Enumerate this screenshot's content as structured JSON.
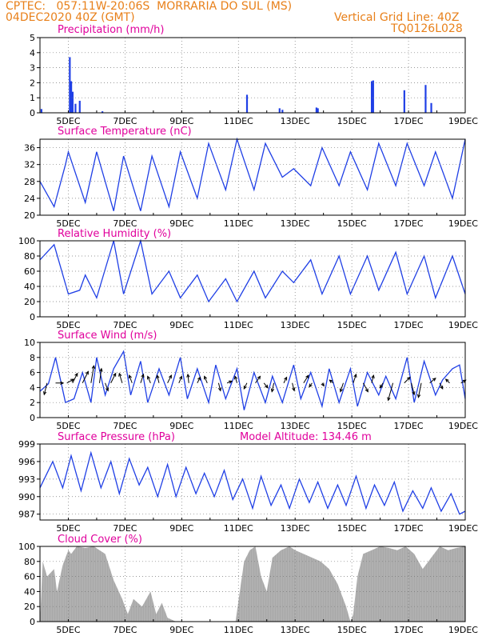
{
  "header": {
    "line1_left": "CPTEC:   057:11W-20:06S  MORRARIA DO SUL (MS)",
    "line2_left": "04DEC2020 40Z (GMT)",
    "line2_right": "Vertical Grid Line: 40Z",
    "line3_right": "TQ0126L028"
  },
  "colors": {
    "header": "#e8801a",
    "title": "#e0009c",
    "line": "#1f3fe6",
    "cloud": "#a8a8a8",
    "arrow": "#000000"
  },
  "x_axis": {
    "start_day": 4,
    "end_day": 19,
    "tick_days": [
      5,
      7,
      9,
      11,
      13,
      15,
      17,
      19
    ],
    "tick_labels": [
      "5DEC",
      "7DEC",
      "9DEC",
      "11DEC",
      "13DEC",
      "15DEC",
      "17DEC",
      "19DEC"
    ]
  },
  "chart_data": [
    {
      "id": "precip",
      "type": "bar",
      "title": "Precipitation (mm/h)",
      "ylim": [
        0,
        5
      ],
      "yticks": [
        0,
        1,
        2,
        3,
        4,
        5
      ],
      "x": [
        4.05,
        5.05,
        5.1,
        5.15,
        5.25,
        5.4,
        6.2,
        11.3,
        12.45,
        12.55,
        13.75,
        13.8,
        15.7,
        15.75,
        16.85,
        17.6,
        17.8
      ],
      "values": [
        0.25,
        3.7,
        2.1,
        1.4,
        0.6,
        0.8,
        0.1,
        1.2,
        0.3,
        0.2,
        0.35,
        0.3,
        2.1,
        2.15,
        1.5,
        1.85,
        0.65
      ]
    },
    {
      "id": "temp",
      "type": "line",
      "title": "Surface Temperature (nC)",
      "ylim": [
        20,
        38
      ],
      "yticks": [
        20,
        24,
        28,
        32,
        36
      ],
      "x": [
        4.0,
        4.5,
        4.9,
        5.0,
        5.6,
        6.0,
        6.6,
        6.95,
        7.55,
        7.95,
        8.55,
        8.95,
        9.55,
        9.95,
        10.55,
        10.95,
        11.55,
        11.95,
        12.55,
        12.95,
        13.55,
        13.95,
        14.55,
        14.95,
        15.55,
        15.95,
        16.55,
        16.95,
        17.55,
        17.95,
        18.55,
        19.0
      ],
      "values": [
        28,
        22,
        32,
        35,
        23,
        35,
        21,
        34,
        21,
        34,
        22,
        35,
        24,
        37,
        26,
        38,
        26,
        37,
        29,
        31,
        27,
        36,
        27,
        35,
        26,
        37,
        27,
        37,
        27,
        35,
        24,
        38
      ]
    },
    {
      "id": "rh",
      "type": "line",
      "title": "Relative Humidity (%)",
      "ylim": [
        0,
        100
      ],
      "yticks": [
        0,
        20,
        40,
        60,
        80,
        100
      ],
      "x": [
        4.0,
        4.5,
        5.0,
        5.4,
        5.6,
        6.0,
        6.6,
        6.95,
        7.55,
        7.95,
        8.55,
        8.95,
        9.55,
        9.95,
        10.55,
        10.95,
        11.55,
        11.95,
        12.55,
        12.95,
        13.55,
        13.95,
        14.55,
        14.95,
        15.55,
        15.95,
        16.55,
        16.95,
        17.55,
        17.95,
        18.55,
        19.0
      ],
      "values": [
        75,
        95,
        30,
        35,
        55,
        25,
        100,
        30,
        100,
        30,
        60,
        25,
        55,
        20,
        50,
        20,
        60,
        25,
        60,
        45,
        75,
        30,
        80,
        30,
        80,
        35,
        85,
        30,
        80,
        25,
        80,
        30
      ]
    },
    {
      "id": "wind",
      "type": "line",
      "title": "Surface Wind (m/s)",
      "ylim": [
        0,
        10
      ],
      "yticks": [
        0,
        2,
        4,
        6,
        8,
        10
      ],
      "x": [
        4.0,
        4.3,
        4.55,
        4.9,
        5.2,
        5.5,
        5.8,
        6.0,
        6.3,
        6.6,
        6.95,
        7.2,
        7.55,
        7.8,
        8.2,
        8.55,
        8.95,
        9.2,
        9.55,
        9.95,
        10.2,
        10.55,
        10.95,
        11.2,
        11.55,
        11.95,
        12.2,
        12.55,
        12.95,
        13.2,
        13.55,
        13.95,
        14.2,
        14.55,
        14.95,
        15.2,
        15.55,
        15.95,
        16.2,
        16.55,
        16.95,
        17.2,
        17.55,
        17.95,
        18.2,
        18.55,
        18.8,
        19.0
      ],
      "values": [
        3.5,
        4.5,
        8.0,
        2.0,
        2.5,
        6.0,
        2.0,
        8.0,
        3.0,
        6.5,
        8.8,
        3.0,
        7.5,
        2.0,
        6.5,
        3.0,
        8.0,
        2.5,
        6.5,
        2.0,
        7.0,
        2.5,
        6.5,
        1.0,
        6.0,
        2.0,
        5.5,
        2.0,
        7.0,
        2.5,
        6.0,
        1.5,
        6.5,
        2.0,
        6.5,
        1.5,
        6.0,
        3.0,
        5.5,
        2.5,
        8.0,
        2.0,
        7.5,
        3.0,
        5.0,
        6.5,
        7.0,
        2.5
      ]
    },
    {
      "id": "pres",
      "type": "line",
      "title": "Surface Pressure (hPa)",
      "subtitle": "Model Altitude: 134.46 m",
      "ylim": [
        986,
        999
      ],
      "yticks": [
        987,
        990,
        993,
        996,
        999
      ],
      "x": [
        4.0,
        4.45,
        4.8,
        5.1,
        5.45,
        5.8,
        6.15,
        6.5,
        6.8,
        7.15,
        7.5,
        7.8,
        8.15,
        8.5,
        8.8,
        9.15,
        9.5,
        9.8,
        10.15,
        10.5,
        10.8,
        11.15,
        11.5,
        11.8,
        12.15,
        12.5,
        12.8,
        13.15,
        13.5,
        13.8,
        14.15,
        14.5,
        14.8,
        15.15,
        15.5,
        15.8,
        16.15,
        16.5,
        16.8,
        17.15,
        17.5,
        17.8,
        18.15,
        18.5,
        18.8,
        19.0
      ],
      "values": [
        991.5,
        996.0,
        991.5,
        997.0,
        991.0,
        997.5,
        991.5,
        996.0,
        990.5,
        996.5,
        992.0,
        995.0,
        990.0,
        995.5,
        990.0,
        995.0,
        990.5,
        994.0,
        990.0,
        994.5,
        989.5,
        993.0,
        988.0,
        993.5,
        988.5,
        992.0,
        988.0,
        993.0,
        989.0,
        992.5,
        988.0,
        992.0,
        988.5,
        993.5,
        988.0,
        992.0,
        988.5,
        992.5,
        987.5,
        991.0,
        988.0,
        991.5,
        987.5,
        990.5,
        987.0,
        987.5
      ]
    },
    {
      "id": "cloud",
      "type": "area",
      "title": "Cloud Cover (%)",
      "ylim": [
        0,
        100
      ],
      "yticks": [
        0,
        20,
        40,
        60,
        80,
        100
      ],
      "x": [
        4.0,
        4.1,
        4.25,
        4.5,
        4.6,
        4.8,
        5.0,
        5.1,
        5.3,
        5.6,
        5.9,
        6.1,
        6.3,
        6.6,
        6.9,
        7.1,
        7.3,
        7.6,
        7.9,
        8.1,
        8.3,
        8.5,
        8.8,
        9.0,
        9.2,
        9.5,
        9.8,
        10.0,
        10.3,
        10.6,
        10.9,
        11.05,
        11.2,
        11.4,
        11.6,
        11.8,
        12.0,
        12.2,
        12.5,
        12.8,
        13.0,
        13.3,
        13.6,
        13.9,
        14.2,
        14.5,
        14.8,
        14.95,
        15.05,
        15.2,
        15.4,
        15.7,
        16.0,
        16.3,
        16.6,
        16.9,
        17.2,
        17.5,
        17.8,
        18.1,
        18.4,
        18.7,
        19.0
      ],
      "values": [
        0,
        80,
        60,
        70,
        40,
        75,
        95,
        90,
        100,
        98,
        100,
        95,
        90,
        55,
        30,
        10,
        30,
        20,
        40,
        10,
        25,
        5,
        0,
        0,
        0,
        0,
        0,
        0,
        0,
        0,
        0,
        40,
        80,
        95,
        100,
        60,
        40,
        85,
        95,
        100,
        95,
        90,
        85,
        80,
        70,
        50,
        20,
        0,
        10,
        60,
        90,
        95,
        100,
        98,
        95,
        100,
        90,
        70,
        85,
        100,
        95,
        98,
        100
      ]
    }
  ],
  "wind_vectors": {
    "days": [
      4.25,
      4.55,
      4.95,
      5.15,
      5.5,
      5.8,
      6.1,
      6.3,
      6.5,
      6.9,
      7.25,
      7.55,
      7.9,
      8.2,
      8.5,
      8.9,
      9.25,
      9.55,
      9.9,
      10.3,
      10.6,
      10.95,
      11.3,
      11.6,
      11.9,
      12.25,
      12.6,
      12.9,
      13.3,
      13.6,
      13.95,
      14.35,
      14.7,
      15.05,
      15.4,
      15.7,
      16.1,
      16.45,
      16.85,
      17.1,
      17.45,
      17.75,
      18.1,
      18.45,
      18.85
    ],
    "u": [
      -0.3,
      0.8,
      0.7,
      0.5,
      0.6,
      0.3,
      0.2,
      0.3,
      0.5,
      -0.3,
      -0.3,
      0.3,
      -0.3,
      -0.2,
      0.4,
      0.3,
      -0.1,
      0.3,
      -0.3,
      0.2,
      0.5,
      -0.2,
      -0.3,
      0.5,
      0.4,
      -0.2,
      0.3,
      0.2,
      0.5,
      -0.3,
      0.2,
      -0.4,
      -0.3,
      0.3,
      0.5,
      0.2,
      -0.3,
      -0.5,
      0.6,
      0.3,
      -0.3,
      0.6,
      0.3,
      -0.4,
      0.5
    ],
    "v": [
      -1.2,
      0.0,
      0.4,
      1.0,
      1.2,
      1.8,
      1.5,
      -0.8,
      1.0,
      1.0,
      0.8,
      0.9,
      0.7,
      0.8,
      0.8,
      0.7,
      0.9,
      0.6,
      0.7,
      -0.8,
      0.2,
      0.7,
      -0.6,
      0.7,
      -0.5,
      -0.9,
      0.6,
      -0.8,
      0.8,
      -0.4,
      -0.3,
      0.3,
      -0.9,
      0.9,
      -0.9,
      0.8,
      -0.5,
      -1.8,
      0.6,
      -1.2,
      -1.5,
      0.5,
      -0.6,
      0.4,
      0.3
    ]
  }
}
